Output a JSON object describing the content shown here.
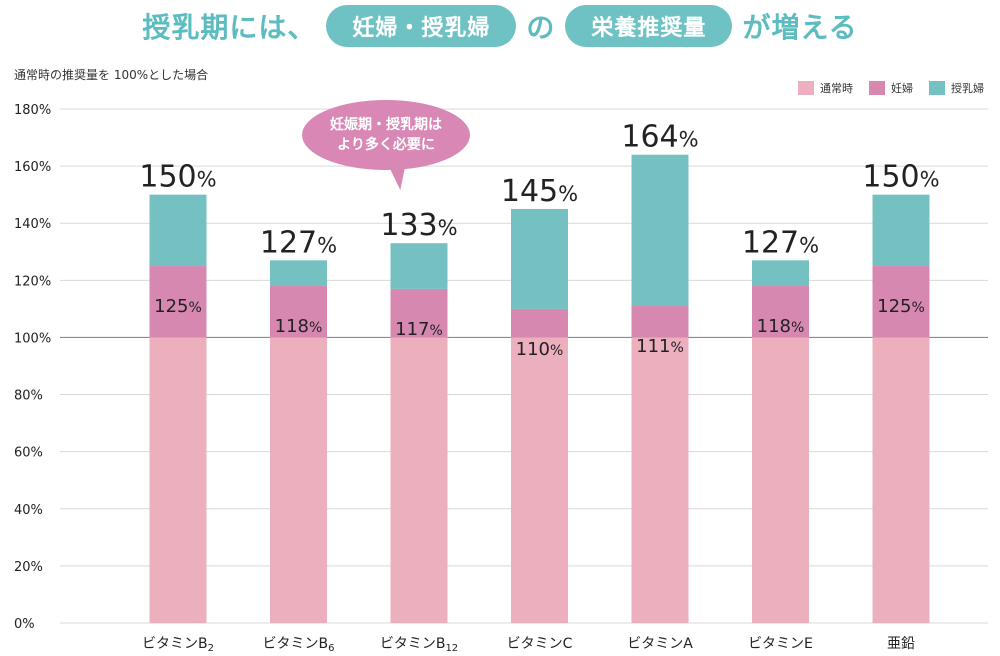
{
  "title": {
    "part1": "授乳期には、",
    "pill1": "妊婦・授乳婦",
    "part2": "の",
    "pill2": "栄養推奨量",
    "part3": "が増える"
  },
  "caption": "通常時の推奨量を 100%とした場合",
  "bubble": {
    "line1": "妊娠期・授乳期は",
    "line2": "より多く必要に"
  },
  "colors": {
    "normal": "#ebafbe",
    "pregnant": "#d788b1",
    "lactating": "#75c1c2",
    "accent": "#5cbcbf"
  },
  "chart_data": {
    "type": "bar",
    "categories": [
      {
        "base": "ビタミンB",
        "sub": "2"
      },
      {
        "base": "ビタミンB",
        "sub": "6"
      },
      {
        "base": "ビタミンB",
        "sub": "12"
      },
      {
        "base": "ビタミンC",
        "sub": ""
      },
      {
        "base": "ビタミンA",
        "sub": ""
      },
      {
        "base": "ビタミンE",
        "sub": ""
      },
      {
        "base": "亜鉛",
        "sub": ""
      }
    ],
    "series": [
      {
        "name": "通常時",
        "values": [
          100,
          100,
          100,
          100,
          100,
          100,
          100
        ]
      },
      {
        "name": "妊婦",
        "values": [
          125,
          118,
          117,
          110,
          111,
          118,
          125
        ]
      },
      {
        "name": "授乳婦",
        "values": [
          150,
          127,
          133,
          145,
          164,
          127,
          150
        ]
      }
    ],
    "ylim": [
      0,
      180
    ],
    "yticks": [
      "0%",
      "20%",
      "40%",
      "60%",
      "80%",
      "100%",
      "120%",
      "140%",
      "160%",
      "180%"
    ],
    "total_labels": [
      "150",
      "127",
      "133",
      "145",
      "164",
      "127",
      "150"
    ],
    "mid_labels": [
      "125",
      "118",
      "117",
      "110",
      "111",
      "118",
      "125"
    ],
    "unit": "%",
    "legend_position": "top-right",
    "grid": true
  }
}
